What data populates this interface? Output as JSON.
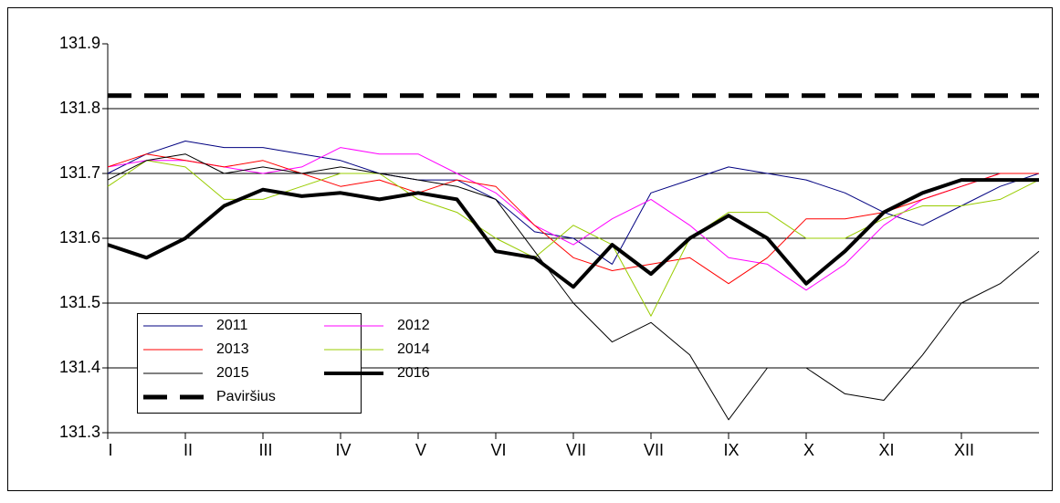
{
  "chart_data": {
    "type": "line",
    "x": [
      0,
      0.5,
      1,
      1.5,
      2,
      2.5,
      3,
      3.5,
      4,
      4.5,
      5,
      5.5,
      6,
      6.5,
      7,
      7.5,
      8,
      8.5,
      9,
      9.5,
      10,
      10.5,
      11,
      11.5,
      12
    ],
    "xlim": [
      0,
      12
    ],
    "xticks": [
      {
        "value": 0,
        "label": "I"
      },
      {
        "value": 1,
        "label": "II"
      },
      {
        "value": 2,
        "label": "III"
      },
      {
        "value": 3,
        "label": "IV"
      },
      {
        "value": 4,
        "label": "V"
      },
      {
        "value": 5,
        "label": "VI"
      },
      {
        "value": 6,
        "label": "VII"
      },
      {
        "value": 7,
        "label": "VII"
      },
      {
        "value": 8,
        "label": "IX"
      },
      {
        "value": 9,
        "label": "X"
      },
      {
        "value": 10,
        "label": "XI"
      },
      {
        "value": 11,
        "label": "XII"
      }
    ],
    "ylim": [
      131.3,
      131.9
    ],
    "yticks": [
      131.3,
      131.4,
      131.5,
      131.6,
      131.7,
      131.8,
      131.9
    ],
    "grid": true,
    "legend": "lower left",
    "series": [
      {
        "name": "2011",
        "color": "#000080",
        "width": 1,
        "values": [
          131.7,
          131.73,
          131.75,
          131.74,
          131.74,
          131.73,
          131.72,
          131.7,
          131.69,
          131.69,
          131.66,
          131.61,
          131.6,
          131.56,
          131.67,
          131.69,
          131.71,
          131.7,
          131.69,
          131.67,
          131.64,
          131.62,
          131.65,
          131.68,
          131.7
        ]
      },
      {
        "name": "2012",
        "color": "#ff00ff",
        "width": 1,
        "values": [
          131.71,
          131.72,
          131.72,
          131.71,
          131.7,
          131.71,
          131.74,
          131.73,
          131.73,
          131.7,
          131.67,
          131.62,
          131.59,
          131.63,
          131.66,
          131.62,
          131.57,
          131.56,
          131.52,
          131.56,
          131.62,
          131.66,
          131.68,
          131.7,
          131.7
        ]
      },
      {
        "name": "2013",
        "color": "#ff0000",
        "width": 1,
        "values": [
          131.71,
          131.73,
          131.72,
          131.71,
          131.72,
          131.7,
          131.68,
          131.69,
          131.67,
          131.69,
          131.68,
          131.62,
          131.57,
          131.55,
          131.56,
          131.57,
          131.53,
          131.57,
          131.63,
          131.63,
          131.64,
          131.66,
          131.68,
          131.7,
          131.7
        ]
      },
      {
        "name": "2014",
        "color": "#99cc00",
        "width": 1,
        "values": [
          131.68,
          131.72,
          131.71,
          131.66,
          131.66,
          131.68,
          131.7,
          131.7,
          131.66,
          131.64,
          131.6,
          131.57,
          131.62,
          131.59,
          131.48,
          131.6,
          131.64,
          131.64,
          131.6,
          131.6,
          131.63,
          131.65,
          131.65,
          131.66,
          131.69
        ]
      },
      {
        "name": "2015",
        "color": "#000000",
        "width": 1,
        "values": [
          131.69,
          131.72,
          131.73,
          131.7,
          131.71,
          131.7,
          131.71,
          131.7,
          131.69,
          131.68,
          131.66,
          131.58,
          131.5,
          131.44,
          131.47,
          131.42,
          131.32,
          131.4,
          131.4,
          131.36,
          131.35,
          131.42,
          131.5,
          131.53,
          131.58
        ]
      },
      {
        "name": "2016",
        "color": "#000000",
        "width": 4,
        "values": [
          131.59,
          131.57,
          131.6,
          131.65,
          131.675,
          131.665,
          131.67,
          131.66,
          131.67,
          131.66,
          131.58,
          131.57,
          131.525,
          131.59,
          131.545,
          131.6,
          131.635,
          131.6,
          131.53,
          131.58,
          131.64,
          131.67,
          131.69,
          131.69,
          131.69
        ]
      }
    ],
    "reference_line": {
      "name": "Paviršius",
      "value": 131.82,
      "color": "#000000",
      "dashed": true
    }
  }
}
